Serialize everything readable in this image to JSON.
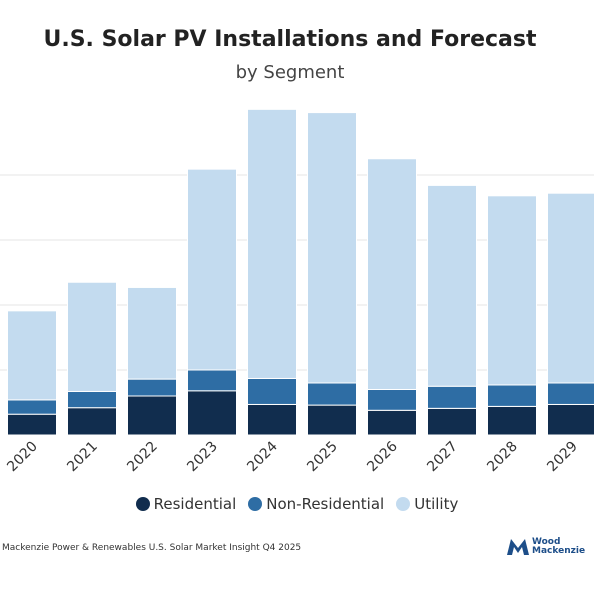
{
  "chart_data": {
    "type": "bar",
    "stacked": true,
    "title": "U.S. Solar PV Installations and Forecast",
    "subtitle": "by Segment",
    "xlabel": "",
    "ylabel": "",
    "categories": [
      "2020",
      "2021",
      "2022",
      "2023",
      "2024",
      "2025",
      "2026",
      "2027",
      "2028",
      "2029"
    ],
    "ylim": [
      0,
      50
    ],
    "grid": true,
    "legend_position": "bottom",
    "series": [
      {
        "name": "Residential",
        "color": "#112d4e",
        "values": [
          3.2,
          4.2,
          6.0,
          6.8,
          4.7,
          4.6,
          3.8,
          4.1,
          4.4,
          4.7
        ]
      },
      {
        "name": "Non-Residential",
        "color": "#2e6da4",
        "values": [
          2.2,
          2.5,
          2.6,
          3.2,
          4.0,
          3.4,
          3.2,
          3.4,
          3.3,
          3.3
        ]
      },
      {
        "name": "Utility",
        "color": "#c3dbef",
        "values": [
          13.7,
          16.8,
          14.1,
          30.9,
          41.4,
          41.6,
          35.5,
          30.9,
          29.1,
          29.2
        ]
      }
    ]
  },
  "footer": {
    "source": "Mackenzie Power & Renewables U.S. Solar Market Insight Q4 2025",
    "logo_line1": "Wood",
    "logo_line2": "Mackenzie",
    "logo_icon": "wood-mackenzie-logo-icon"
  }
}
